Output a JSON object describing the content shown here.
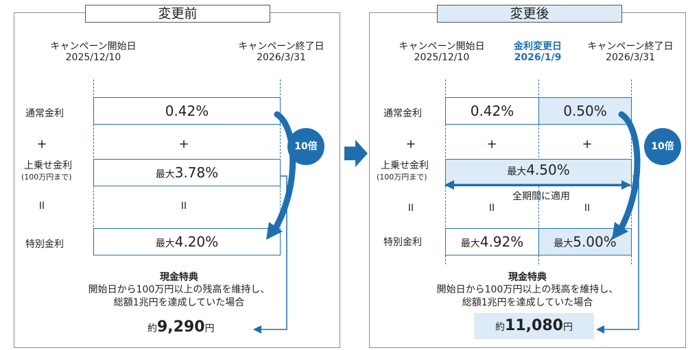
{
  "before": {
    "title": "変更前",
    "start_label": "キャンペーン開始日",
    "start_date": "2025/12/10",
    "end_label": "キャンペーン終了日",
    "end_date": "2026/3/31",
    "normal_rate_label": "通常金利",
    "normal_rate": "0.42%",
    "plus_symbol": "+",
    "bonus_rate_label": "上乗せ金利",
    "bonus_rate_note": "(100万円まで)",
    "max_prefix": "最大",
    "bonus_rate": "3.78%",
    "equals_symbol": "II",
    "special_rate_label": "特別金利",
    "special_rate": "4.20%",
    "multiplier": "10倍",
    "cash_title": "現金特典",
    "cash_desc_1": "開始日から100万円以上の残高を維持し、",
    "cash_desc_2": "総額1兆円を達成していた場合",
    "approx_prefix": "約",
    "cash_amount": "9,290",
    "yen": "円"
  },
  "after": {
    "title": "変更後",
    "start_label": "キャンペーン開始日",
    "start_date": "2025/12/10",
    "change_label": "金利変更日",
    "change_date": "2026/1/9",
    "end_label": "キャンペーン終了日",
    "end_date": "2026/3/31",
    "normal_rate_label": "通常金利",
    "normal_rate_1": "0.42%",
    "normal_rate_2": "0.50%",
    "plus_symbol": "+",
    "bonus_rate_label": "上乗せ金利",
    "bonus_rate_note": "(100万円まで)",
    "max_prefix": "最大",
    "bonus_rate": "4.50%",
    "whole_period": "全期間に適用",
    "equals_symbol": "II",
    "special_rate_label": "特別金利",
    "special_rate_1": "4.92%",
    "special_rate_2": "5.00%",
    "multiplier": "10倍",
    "cash_title": "現金特典",
    "cash_desc_1": "開始日から100万円以上の残高を維持し、",
    "cash_desc_2": "総額1兆円を達成していた場合",
    "approx_prefix": "約",
    "cash_amount": "11,080",
    "yen": "円"
  },
  "colors": {
    "accent": "#1f6fb0",
    "highlight": "#dcebf7"
  }
}
